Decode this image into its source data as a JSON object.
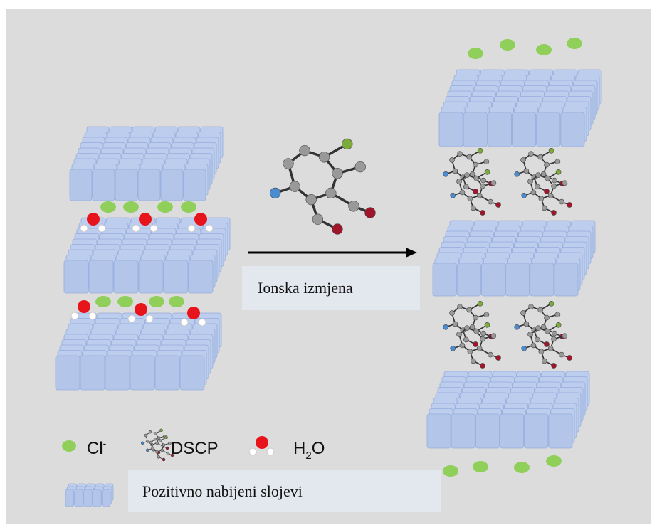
{
  "arrow_label": "Ionska izmjena",
  "legend": {
    "chloride": {
      "symbol": "Cl",
      "charge": "-"
    },
    "dscp": "DSCP",
    "water": {
      "symbol": "H",
      "subscript": "2",
      "suffix": "O"
    },
    "layers": "Pozitivno nabijeni slojevi"
  }
}
